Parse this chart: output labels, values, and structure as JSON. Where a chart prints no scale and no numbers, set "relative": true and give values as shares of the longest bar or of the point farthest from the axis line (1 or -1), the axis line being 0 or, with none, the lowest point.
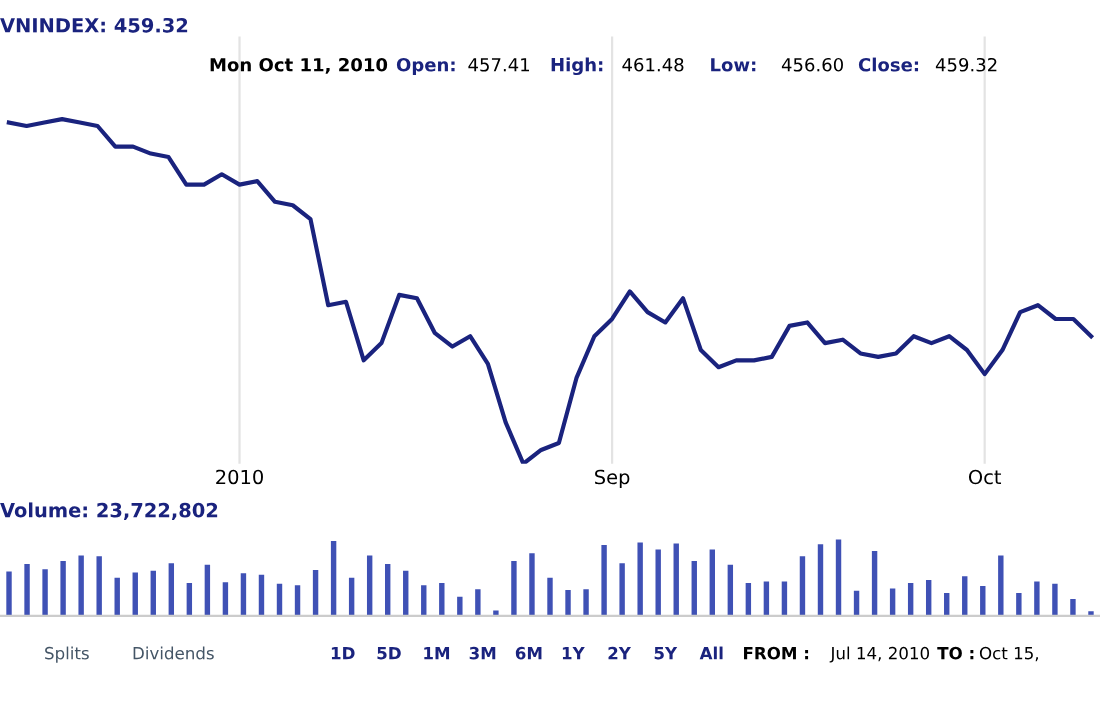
{
  "chart_data": [
    {
      "type": "line",
      "title": "VNINDEX: 459.32",
      "relative": true,
      "grid": "x",
      "color": "#1a237e",
      "annotations": [
        "Mon Oct 11, 2010",
        "Open:",
        "457.41",
        "High:",
        "461.48",
        "Low:",
        "456.60",
        "Close:",
        "459.32"
      ],
      "categories": [
        null,
        null,
        null,
        null,
        null,
        null,
        null,
        null,
        null,
        null,
        null,
        null,
        null,
        "2010",
        null,
        null,
        null,
        null,
        null,
        null,
        null,
        null,
        null,
        null,
        null,
        null,
        null,
        null,
        null,
        null,
        null,
        null,
        null,
        null,
        "Sep",
        null,
        null,
        null,
        null,
        null,
        null,
        null,
        null,
        null,
        null,
        null,
        null,
        null,
        null,
        null,
        null,
        null,
        null,
        null,
        null,
        "Oct",
        null,
        null,
        null,
        null,
        null,
        null
      ],
      "values": [
        0.99,
        0.98,
        0.99,
        1.0,
        0.99,
        0.98,
        0.92,
        0.92,
        0.9,
        0.89,
        0.81,
        0.81,
        0.84,
        0.81,
        0.82,
        0.76,
        0.75,
        0.71,
        0.46,
        0.47,
        0.3,
        0.35,
        0.49,
        0.48,
        0.38,
        0.34,
        0.37,
        0.29,
        0.12,
        0,
        0.04,
        0.06,
        0.25,
        0.37,
        0.42,
        0.5,
        0.44,
        0.41,
        0.48,
        0.33,
        0.28,
        0.3,
        0.3,
        0.31,
        0.4,
        0.41,
        0.35,
        0.36,
        0.32,
        0.31,
        0.32,
        0.37,
        0.35,
        0.37,
        0.33,
        0.26,
        0.33,
        0.44,
        0.46,
        0.42,
        0.42,
        0.37
      ]
    },
    {
      "type": "bar",
      "title": "Volume: 23,722,802",
      "relative": true,
      "color": "#3f51b5",
      "categories": [
        null,
        null,
        null,
        null,
        null,
        null,
        null,
        null,
        null,
        null,
        null,
        null,
        null,
        null,
        null,
        null,
        null,
        null,
        null,
        null,
        null,
        null,
        null,
        null,
        null,
        null,
        null,
        null,
        null,
        null,
        null,
        null,
        null,
        null,
        null,
        null,
        null,
        null,
        null,
        null,
        null,
        null,
        null,
        null,
        null,
        null,
        null,
        null,
        null,
        null,
        null,
        null,
        null,
        null,
        null,
        null,
        null,
        null,
        null,
        null,
        null
      ],
      "values": [
        0.58,
        0.68,
        0.61,
        0.72,
        0.79,
        0.78,
        0.5,
        0.57,
        0.59,
        0.69,
        0.43,
        0.67,
        0.44,
        0.56,
        0.54,
        0.42,
        0.4,
        0.6,
        0.98,
        0.5,
        0.79,
        0.68,
        0.59,
        0.4,
        0.43,
        0.25,
        0.35,
        0.07,
        0.72,
        0.82,
        0.5,
        0.34,
        0.35,
        0.93,
        0.69,
        0.96,
        0.87,
        0.95,
        0.72,
        0.87,
        0.67,
        0.43,
        0.45,
        0.45,
        0.78,
        0.94,
        1.0,
        0.33,
        0.85,
        0.36,
        0.43,
        0.47,
        0.3,
        0.52,
        0.39,
        0.79,
        0.3,
        0.45,
        0.42,
        0.22,
        0.06
      ]
    },
    {
      "type": "other",
      "annotations": [
        "Splits",
        "Dividends",
        "1D",
        "5D",
        "1M",
        "3M",
        "6M",
        "1Y",
        "2Y",
        "5Y",
        "All",
        "FROM :",
        "Jul 14, 2010",
        "TO :",
        "Oct 15,"
      ]
    }
  ]
}
